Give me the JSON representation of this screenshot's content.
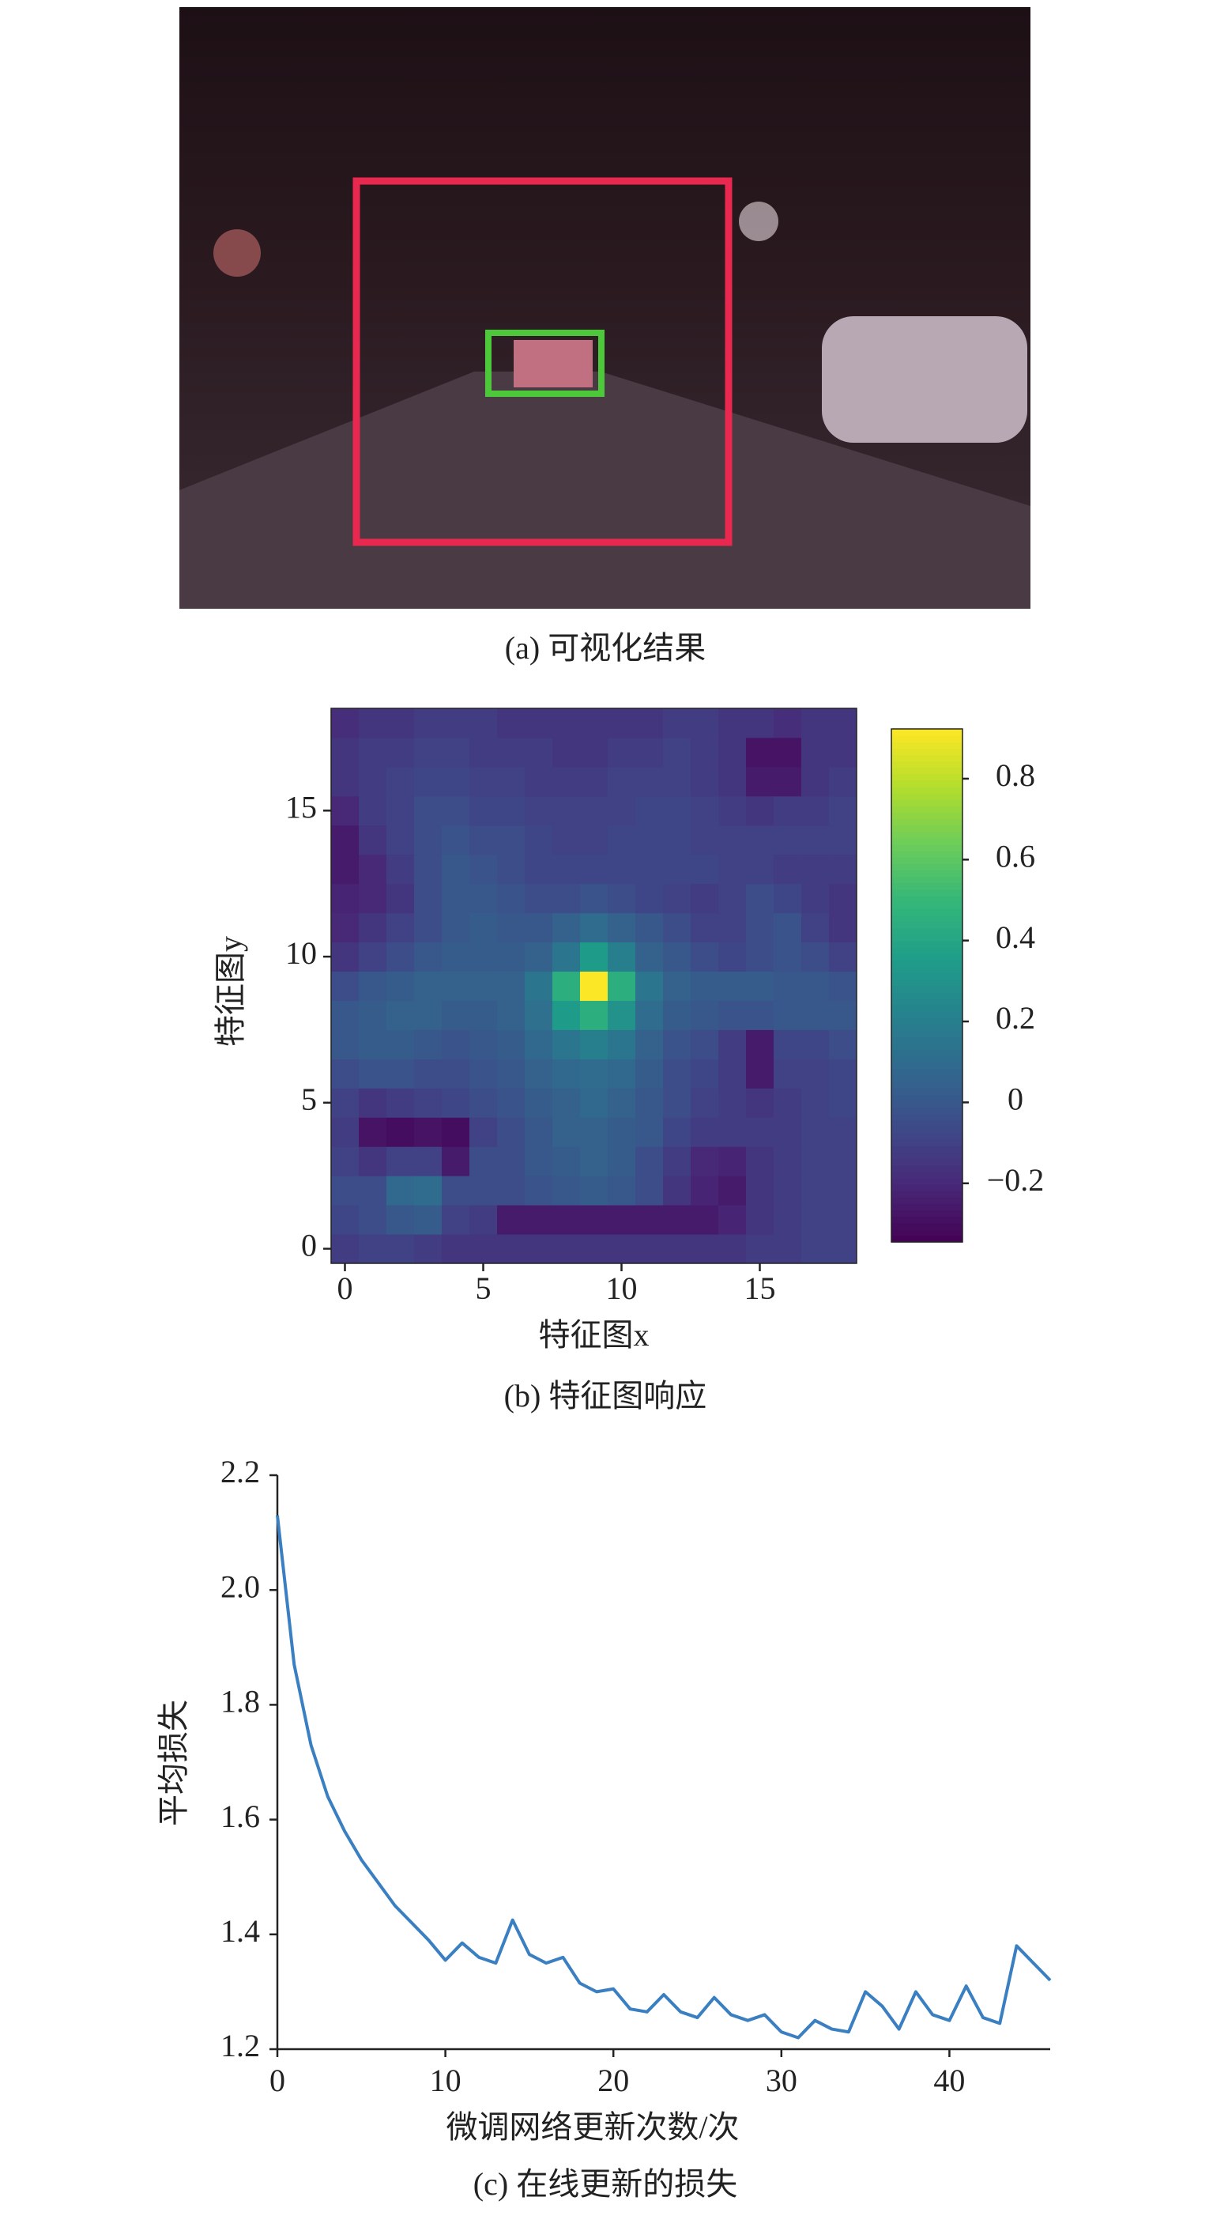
{
  "figure_a": {
    "caption": "(a) 可视化结果"
  },
  "chart_data": [
    {
      "type": "heatmap",
      "caption": "(b) 特征图响应",
      "xlabel": "特征图x",
      "ylabel": "特征图y",
      "xlim": [
        -0.5,
        18.5
      ],
      "ylim": [
        -0.5,
        18.5
      ],
      "xticks": [
        0,
        5,
        10,
        15
      ],
      "yticks": [
        0,
        5,
        10,
        15
      ],
      "zlim": [
        -0.345,
        0.923
      ],
      "colormap": "viridis",
      "colorbar_ticks": [
        {
          "value": -0.2,
          "label": "−0.2"
        },
        0,
        0.2,
        0.4,
        0.6,
        0.8
      ],
      "values": [
        [
          -0.12,
          -0.1,
          -0.1,
          -0.12,
          -0.15,
          -0.15,
          -0.15,
          -0.15,
          -0.15,
          -0.15,
          -0.15,
          -0.15,
          -0.15,
          -0.15,
          -0.15,
          -0.12,
          -0.12,
          -0.1,
          -0.1
        ],
        [
          -0.08,
          -0.05,
          0,
          0.02,
          -0.1,
          -0.12,
          -0.25,
          -0.25,
          -0.25,
          -0.25,
          -0.25,
          -0.25,
          -0.25,
          -0.25,
          -0.22,
          -0.15,
          -0.12,
          -0.1,
          -0.1
        ],
        [
          -0.05,
          -0.05,
          0.08,
          0.1,
          -0.05,
          -0.05,
          -0.05,
          -0.02,
          0,
          0.02,
          0,
          -0.05,
          -0.15,
          -0.22,
          -0.25,
          -0.15,
          -0.12,
          -0.1,
          -0.1
        ],
        [
          -0.1,
          -0.15,
          -0.1,
          -0.1,
          -0.25,
          -0.05,
          -0.05,
          0,
          0.02,
          0.05,
          0.02,
          -0.05,
          -0.12,
          -0.2,
          -0.22,
          -0.15,
          -0.12,
          -0.1,
          -0.1
        ],
        [
          -0.12,
          -0.28,
          -0.3,
          -0.28,
          -0.3,
          -0.1,
          -0.05,
          0,
          0.05,
          0.05,
          0.02,
          0,
          -0.08,
          -0.12,
          -0.12,
          -0.12,
          -0.12,
          -0.1,
          -0.1
        ],
        [
          -0.1,
          -0.15,
          -0.12,
          -0.1,
          -0.08,
          -0.05,
          -0.02,
          0.02,
          0.05,
          0.08,
          0.05,
          0,
          -0.05,
          -0.1,
          -0.12,
          -0.15,
          -0.12,
          -0.1,
          -0.08
        ],
        [
          -0.05,
          -0.02,
          -0.02,
          -0.05,
          -0.05,
          -0.02,
          0,
          0.05,
          0.08,
          0.1,
          0.08,
          0.02,
          -0.05,
          -0.08,
          -0.12,
          -0.25,
          -0.1,
          -0.1,
          -0.08
        ],
        [
          0,
          0.02,
          0.02,
          0,
          -0.02,
          0,
          0.02,
          0.08,
          0.15,
          0.2,
          0.15,
          0.05,
          -0.02,
          -0.05,
          -0.12,
          -0.25,
          -0.08,
          -0.08,
          -0.05
        ],
        [
          0,
          0.02,
          0.05,
          0.05,
          0.02,
          0.02,
          0.05,
          0.12,
          0.35,
          0.45,
          0.3,
          0.1,
          0.02,
          0,
          -0.02,
          -0.02,
          0,
          0,
          0
        ],
        [
          -0.05,
          0,
          0.02,
          0.05,
          0.05,
          0.05,
          0.05,
          0.15,
          0.45,
          0.92,
          0.45,
          0.15,
          0.05,
          0.02,
          0.02,
          0.02,
          0,
          0,
          -0.02
        ],
        [
          -0.15,
          -0.1,
          -0.05,
          0,
          0.02,
          0.02,
          0.02,
          0.05,
          0.15,
          0.35,
          0.2,
          0.05,
          0,
          -0.05,
          -0.08,
          -0.05,
          -0.02,
          -0.05,
          -0.1
        ],
        [
          -0.2,
          -0.15,
          -0.1,
          -0.05,
          0,
          0.02,
          0,
          0,
          0.05,
          0.1,
          0.05,
          0,
          -0.05,
          -0.1,
          -0.1,
          -0.05,
          -0.02,
          -0.1,
          -0.15
        ],
        [
          -0.22,
          -0.2,
          -0.15,
          -0.05,
          0,
          0,
          -0.02,
          -0.05,
          -0.05,
          -0.02,
          -0.05,
          -0.08,
          -0.1,
          -0.12,
          -0.1,
          -0.05,
          -0.08,
          -0.12,
          -0.15
        ],
        [
          -0.25,
          -0.2,
          -0.12,
          -0.05,
          0,
          -0.02,
          -0.05,
          -0.08,
          -0.08,
          -0.08,
          -0.08,
          -0.08,
          -0.08,
          -0.08,
          -0.1,
          -0.1,
          -0.12,
          -0.12,
          -0.12
        ],
        [
          -0.25,
          -0.15,
          -0.1,
          -0.05,
          -0.02,
          -0.05,
          -0.05,
          -0.08,
          -0.1,
          -0.1,
          -0.08,
          -0.08,
          -0.08,
          -0.1,
          -0.1,
          -0.1,
          -0.1,
          -0.1,
          -0.1
        ],
        [
          -0.2,
          -0.12,
          -0.1,
          -0.05,
          -0.05,
          -0.08,
          -0.08,
          -0.1,
          -0.1,
          -0.1,
          -0.1,
          -0.08,
          -0.08,
          -0.1,
          -0.12,
          -0.15,
          -0.12,
          -0.12,
          -0.1
        ],
        [
          -0.15,
          -0.12,
          -0.1,
          -0.08,
          -0.08,
          -0.1,
          -0.1,
          -0.12,
          -0.12,
          -0.12,
          -0.1,
          -0.1,
          -0.1,
          -0.12,
          -0.15,
          -0.25,
          -0.25,
          -0.15,
          -0.12
        ],
        [
          -0.15,
          -0.12,
          -0.12,
          -0.1,
          -0.1,
          -0.12,
          -0.12,
          -0.12,
          -0.15,
          -0.15,
          -0.12,
          -0.12,
          -0.1,
          -0.12,
          -0.15,
          -0.28,
          -0.28,
          -0.15,
          -0.15
        ],
        [
          -0.18,
          -0.15,
          -0.15,
          -0.12,
          -0.12,
          -0.12,
          -0.15,
          -0.15,
          -0.15,
          -0.15,
          -0.15,
          -0.15,
          -0.12,
          -0.12,
          -0.15,
          -0.15,
          -0.18,
          -0.15,
          -0.15
        ]
      ]
    },
    {
      "type": "line",
      "caption": "(c) 在线更新的损失",
      "xlabel": "微调网络更新次数/次",
      "ylabel": "平均损失",
      "xlim": [
        0,
        46
      ],
      "ylim": [
        1.2,
        2.2
      ],
      "xticks": [
        0,
        10,
        20,
        30,
        40
      ],
      "yticks": [
        1.2,
        1.4,
        1.6,
        1.8,
        {
          "value": 2,
          "label": "2.0"
        },
        2.2
      ],
      "x": [
        0,
        1,
        2,
        3,
        4,
        5,
        6,
        7,
        8,
        9,
        10,
        11,
        12,
        13,
        14,
        15,
        16,
        17,
        18,
        19,
        20,
        21,
        22,
        23,
        24,
        25,
        26,
        27,
        28,
        29,
        30,
        31,
        32,
        33,
        34,
        35,
        36,
        37,
        38,
        39,
        40,
        41,
        42,
        43,
        44,
        45,
        46
      ],
      "series": [
        {
          "color": "#3a7fc1",
          "values": [
            2.13,
            1.87,
            1.73,
            1.64,
            1.58,
            1.53,
            1.49,
            1.45,
            1.42,
            1.39,
            1.355,
            1.385,
            1.36,
            1.35,
            1.425,
            1.365,
            1.35,
            1.36,
            1.315,
            1.3,
            1.305,
            1.27,
            1.265,
            1.295,
            1.265,
            1.255,
            1.29,
            1.26,
            1.25,
            1.26,
            1.23,
            1.22,
            1.25,
            1.235,
            1.23,
            1.3,
            1.275,
            1.235,
            1.3,
            1.26,
            1.25,
            1.31,
            1.255,
            1.245,
            1.38,
            1.35,
            1.32
          ]
        }
      ]
    }
  ]
}
